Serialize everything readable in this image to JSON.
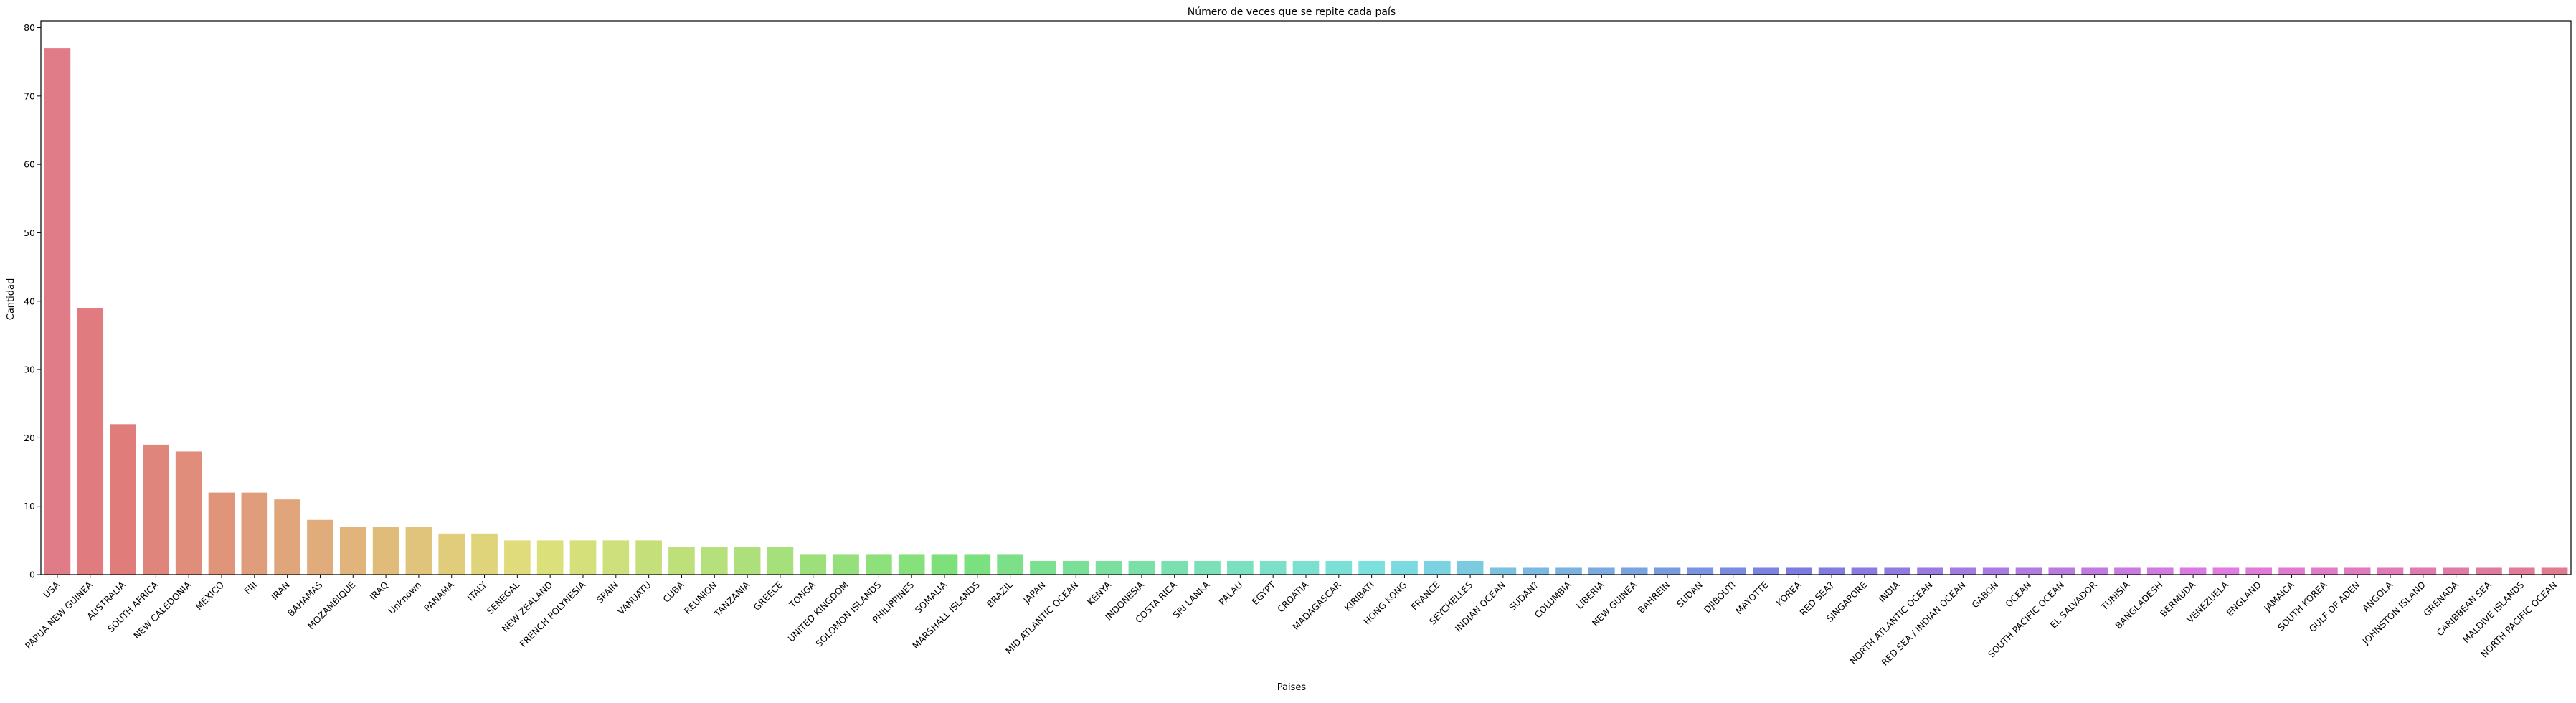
{
  "chart_data": {
    "type": "bar",
    "title": "Número de veces que se repite cada país",
    "xlabel": "Paises",
    "ylabel": "Cantidad",
    "ylim": [
      0,
      81
    ],
    "yticks": [
      0,
      10,
      20,
      30,
      40,
      50,
      60,
      70,
      80
    ],
    "grid": false,
    "legend": "none",
    "palette": "husl",
    "categories": [
      "USA",
      "PAPUA NEW GUINEA",
      "AUSTRALIA",
      "SOUTH AFRICA",
      "NEW CALEDONIA",
      "MEXICO",
      "FIJI",
      "IRAN",
      "BAHAMAS",
      "MOZAMBIQUE",
      "IRAQ",
      "Unknown",
      "PANAMA",
      "ITALY",
      "SENEGAL",
      "NEW ZEALAND",
      "FRENCH POLYNESIA",
      "SPAIN",
      "VANUATU",
      "CUBA",
      "REUNION",
      "TANZANIA",
      "GREECE",
      "TONGA",
      "UNITED KINGDOM",
      "SOLOMON ISLANDS",
      "PHILIPPINES",
      "SOMALIA",
      "MARSHALL ISLANDS",
      "BRAZIL",
      "JAPAN",
      "MID ATLANTIC OCEAN",
      "KENYA",
      "INDONESIA",
      "COSTA RICA",
      "SRI LANKA",
      "PALAU",
      "EGYPT",
      "CROATIA",
      "MADAGASCAR",
      "KIRIBATI",
      "HONG KONG",
      "FRANCE",
      "SEYCHELLES",
      "INDIAN OCEAN",
      "SUDAN?",
      "COLUMBIA",
      "LIBERIA",
      "NEW GUINEA",
      "BAHREIN",
      "SUDAN",
      "DJIBOUTI",
      "MAYOTTE",
      "KOREA",
      "RED SEA?",
      "SINGAPORE",
      "INDIA",
      "NORTH ATLANTIC OCEAN",
      "RED SEA / INDIAN OCEAN",
      "GABON",
      "OCEAN",
      "SOUTH PACIFIC OCEAN",
      "EL SALVADOR",
      "TUNISIA",
      "BANGLADESH",
      "BERMUDA",
      "VENEZUELA",
      "ENGLAND",
      "JAMAICA",
      "SOUTH KOREA",
      "GULF OF ADEN",
      "ANGOLA",
      "JOHNSTON ISLAND",
      "GRENADA",
      "CARIBBEAN SEA",
      "MALDIVE ISLANDS",
      "NORTH PACIFIC OCEAN"
    ],
    "values": [
      77,
      39,
      22,
      19,
      18,
      12,
      12,
      11,
      8,
      7,
      7,
      7,
      6,
      6,
      5,
      5,
      5,
      5,
      5,
      4,
      4,
      4,
      4,
      3,
      3,
      3,
      3,
      3,
      3,
      3,
      2,
      2,
      2,
      2,
      2,
      2,
      2,
      2,
      2,
      2,
      2,
      2,
      2,
      2,
      1,
      1,
      1,
      1,
      1,
      1,
      1,
      1,
      1,
      1,
      1,
      1,
      1,
      1,
      1,
      1,
      1,
      1,
      1,
      1,
      1,
      1,
      1,
      1,
      1,
      1,
      1,
      1,
      1,
      1,
      1,
      1,
      1
    ]
  }
}
